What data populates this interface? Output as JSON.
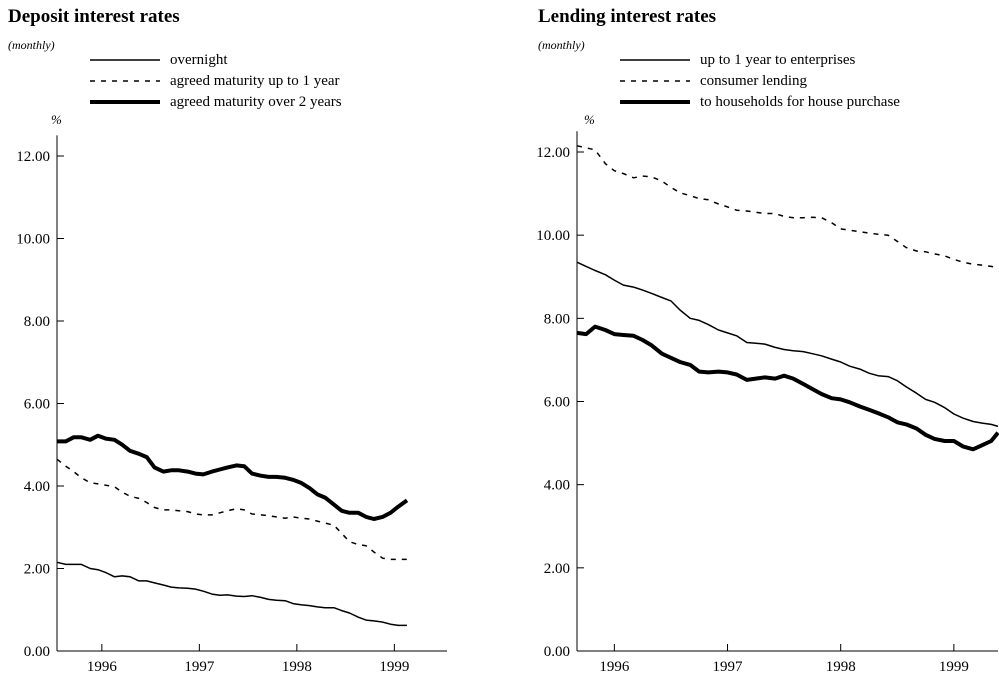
{
  "charts": [
    {
      "title": "Deposit interest rates",
      "subtitle": "(monthly)",
      "unit": "%",
      "chart_data": {
        "type": "line",
        "ylim": [
          0,
          12.5
        ],
        "yticks": [
          "0.00",
          "2.00",
          "4.00",
          "6.00",
          "8.00",
          "10.00",
          "12.00"
        ],
        "ytick_values": [
          0,
          2,
          4,
          6,
          8,
          10,
          12
        ],
        "xticks": [
          "1996",
          "1997",
          "1998",
          "1999"
        ],
        "xtick_positions": [
          1996.0,
          1997.0,
          1998.0,
          1999.0
        ],
        "xlim": [
          1995.54,
          1999.54
        ],
        "grid": false,
        "legend": "top-left",
        "series": [
          {
            "name": "overnight",
            "style": "solid",
            "x": [
              1995.54,
              1995.63,
              1995.71,
              1995.79,
              1995.88,
              1995.96,
              1996.04,
              1996.13,
              1996.21,
              1996.29,
              1996.38,
              1996.46,
              1996.54,
              1996.63,
              1996.71,
              1996.79,
              1996.88,
              1996.96,
              1997.04,
              1997.13,
              1997.21,
              1997.29,
              1997.38,
              1997.46,
              1997.54,
              1997.63,
              1997.71,
              1997.79,
              1997.88,
              1997.96,
              1998.04,
              1998.13,
              1998.21,
              1998.29,
              1998.38,
              1998.46,
              1998.54,
              1998.63,
              1998.71,
              1998.79,
              1998.88,
              1998.96,
              1999.04,
              1999.13
            ],
            "y": [
              2.15,
              2.1,
              2.1,
              2.1,
              2.0,
              1.97,
              1.9,
              1.8,
              1.82,
              1.8,
              1.7,
              1.7,
              1.65,
              1.6,
              1.55,
              1.53,
              1.52,
              1.5,
              1.45,
              1.38,
              1.35,
              1.36,
              1.33,
              1.32,
              1.34,
              1.3,
              1.25,
              1.23,
              1.22,
              1.15,
              1.12,
              1.1,
              1.07,
              1.05,
              1.05,
              0.98,
              0.92,
              0.82,
              0.75,
              0.73,
              0.7,
              0.65,
              0.62,
              0.62
            ]
          },
          {
            "name": "agreed maturity up to 1 year",
            "style": "dashed",
            "x": [
              1995.54,
              1995.63,
              1995.71,
              1995.79,
              1995.88,
              1995.96,
              1996.04,
              1996.13,
              1996.21,
              1996.29,
              1996.38,
              1996.46,
              1996.54,
              1996.63,
              1996.71,
              1996.79,
              1996.88,
              1996.96,
              1997.04,
              1997.13,
              1997.21,
              1997.29,
              1997.38,
              1997.46,
              1997.54,
              1997.63,
              1997.71,
              1997.79,
              1997.88,
              1997.96,
              1998.04,
              1998.13,
              1998.21,
              1998.29,
              1998.38,
              1998.46,
              1998.54,
              1998.63,
              1998.71,
              1998.79,
              1998.88,
              1998.96,
              1999.04,
              1999.13
            ],
            "y": [
              4.65,
              4.48,
              4.35,
              4.2,
              4.08,
              4.05,
              4.02,
              3.98,
              3.85,
              3.75,
              3.7,
              3.6,
              3.48,
              3.42,
              3.42,
              3.4,
              3.38,
              3.32,
              3.3,
              3.3,
              3.35,
              3.4,
              3.45,
              3.42,
              3.32,
              3.3,
              3.28,
              3.25,
              3.22,
              3.25,
              3.22,
              3.2,
              3.15,
              3.1,
              3.05,
              2.85,
              2.65,
              2.58,
              2.55,
              2.4,
              2.25,
              2.22,
              2.22,
              2.22
            ]
          },
          {
            "name": "agreed maturity over 2 years",
            "style": "thick",
            "x": [
              1995.54,
              1995.63,
              1995.71,
              1995.79,
              1995.88,
              1995.96,
              1996.04,
              1996.13,
              1996.21,
              1996.29,
              1996.38,
              1996.46,
              1996.54,
              1996.63,
              1996.71,
              1996.79,
              1996.88,
              1996.96,
              1997.04,
              1997.13,
              1997.21,
              1997.29,
              1997.38,
              1997.46,
              1997.54,
              1997.63,
              1997.71,
              1997.79,
              1997.88,
              1997.96,
              1998.04,
              1998.13,
              1998.21,
              1998.29,
              1998.38,
              1998.46,
              1998.54,
              1998.63,
              1998.71,
              1998.79,
              1998.88,
              1998.96,
              1999.04,
              1999.13
            ],
            "y": [
              5.08,
              5.08,
              5.18,
              5.18,
              5.12,
              5.22,
              5.15,
              5.12,
              5.0,
              4.85,
              4.78,
              4.7,
              4.45,
              4.35,
              4.38,
              4.38,
              4.35,
              4.3,
              4.28,
              4.35,
              4.4,
              4.45,
              4.5,
              4.48,
              4.3,
              4.25,
              4.22,
              4.22,
              4.2,
              4.15,
              4.08,
              3.95,
              3.8,
              3.72,
              3.55,
              3.4,
              3.35,
              3.35,
              3.25,
              3.2,
              3.25,
              3.35,
              3.5,
              3.65
            ]
          }
        ]
      }
    },
    {
      "title": "Lending interest rates",
      "subtitle": "(monthly)",
      "unit": "%",
      "chart_data": {
        "type": "line",
        "ylim": [
          0,
          12.5
        ],
        "yticks": [
          "0.00",
          "2.00",
          "4.00",
          "6.00",
          "8.00",
          "10.00",
          "12.00"
        ],
        "ytick_values": [
          0,
          2,
          4,
          6,
          8,
          10,
          12
        ],
        "xticks": [
          "1996",
          "1997",
          "1998",
          "1999"
        ],
        "xtick_positions": [
          1996.0,
          1997.0,
          1998.0,
          1999.0
        ],
        "xlim": [
          1995.67,
          1999.39
        ],
        "grid": false,
        "legend": "top-left",
        "series": [
          {
            "name": "up to 1 year to enterprises",
            "style": "solid",
            "x": [
              1995.67,
              1995.75,
              1995.83,
              1995.92,
              1996.0,
              1996.08,
              1996.17,
              1996.25,
              1996.33,
              1996.42,
              1996.5,
              1996.58,
              1996.67,
              1996.75,
              1996.83,
              1996.92,
              1997.0,
              1997.08,
              1997.17,
              1997.25,
              1997.33,
              1997.42,
              1997.5,
              1997.58,
              1997.67,
              1997.75,
              1997.83,
              1997.92,
              1998.0,
              1998.08,
              1998.17,
              1998.25,
              1998.33,
              1998.42,
              1998.5,
              1998.58,
              1998.67,
              1998.75,
              1998.83,
              1998.92,
              1999.0,
              1999.08,
              1999.17,
              1999.25,
              1999.33,
              1999.39
            ],
            "y": [
              9.35,
              9.25,
              9.15,
              9.05,
              8.92,
              8.8,
              8.75,
              8.68,
              8.6,
              8.5,
              8.42,
              8.2,
              8.0,
              7.95,
              7.85,
              7.72,
              7.65,
              7.58,
              7.42,
              7.4,
              7.38,
              7.3,
              7.25,
              7.22,
              7.2,
              7.15,
              7.1,
              7.02,
              6.95,
              6.85,
              6.78,
              6.68,
              6.62,
              6.6,
              6.5,
              6.35,
              6.2,
              6.05,
              5.98,
              5.85,
              5.7,
              5.6,
              5.52,
              5.48,
              5.45,
              5.4
            ]
          },
          {
            "name": "consumer lending",
            "style": "dashed",
            "x": [
              1995.67,
              1995.75,
              1995.83,
              1995.92,
              1996.0,
              1996.08,
              1996.17,
              1996.25,
              1996.33,
              1996.42,
              1996.5,
              1996.58,
              1996.67,
              1996.75,
              1996.83,
              1996.92,
              1997.0,
              1997.08,
              1997.17,
              1997.25,
              1997.33,
              1997.42,
              1997.5,
              1997.58,
              1997.67,
              1997.75,
              1997.83,
              1997.92,
              1998.0,
              1998.08,
              1998.17,
              1998.25,
              1998.33,
              1998.42,
              1998.5,
              1998.58,
              1998.67,
              1998.75,
              1998.83,
              1998.92,
              1999.0,
              1999.08,
              1999.17,
              1999.25,
              1999.33,
              1999.39
            ],
            "y": [
              12.15,
              12.1,
              12.05,
              11.72,
              11.55,
              11.48,
              11.38,
              11.42,
              11.4,
              11.3,
              11.15,
              11.02,
              10.95,
              10.88,
              10.85,
              10.75,
              10.68,
              10.6,
              10.58,
              10.55,
              10.52,
              10.52,
              10.45,
              10.42,
              10.42,
              10.43,
              10.42,
              10.3,
              10.15,
              10.12,
              10.08,
              10.05,
              10.02,
              10.0,
              9.85,
              9.7,
              9.62,
              9.6,
              9.55,
              9.5,
              9.42,
              9.35,
              9.3,
              9.28,
              9.25,
              9.22
            ]
          },
          {
            "name": "to households for house purchase",
            "style": "thick",
            "x": [
              1995.67,
              1995.75,
              1995.83,
              1995.92,
              1996.0,
              1996.08,
              1996.17,
              1996.25,
              1996.33,
              1996.42,
              1996.5,
              1996.58,
              1996.67,
              1996.75,
              1996.83,
              1996.92,
              1997.0,
              1997.08,
              1997.17,
              1997.25,
              1997.33,
              1997.42,
              1997.5,
              1997.58,
              1997.67,
              1997.75,
              1997.83,
              1997.92,
              1998.0,
              1998.08,
              1998.17,
              1998.25,
              1998.33,
              1998.42,
              1998.5,
              1998.58,
              1998.67,
              1998.75,
              1998.83,
              1998.92,
              1999.0,
              1999.08,
              1999.17,
              1999.25,
              1999.33,
              1999.39
            ],
            "y": [
              7.65,
              7.62,
              7.8,
              7.72,
              7.62,
              7.6,
              7.58,
              7.48,
              7.35,
              7.15,
              7.05,
              6.95,
              6.88,
              6.72,
              6.7,
              6.72,
              6.7,
              6.65,
              6.52,
              6.55,
              6.58,
              6.55,
              6.62,
              6.55,
              6.42,
              6.3,
              6.18,
              6.08,
              6.05,
              5.98,
              5.88,
              5.8,
              5.72,
              5.62,
              5.5,
              5.45,
              5.35,
              5.2,
              5.1,
              5.05,
              5.05,
              4.92,
              4.85,
              4.95,
              5.05,
              5.25
            ]
          }
        ]
      }
    }
  ]
}
